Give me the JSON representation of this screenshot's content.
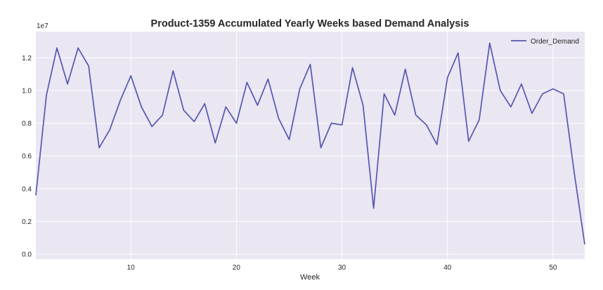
{
  "chart_data": {
    "type": "line",
    "title": "Product-1359 Accumulated Yearly Weeks based Demand Analysis",
    "xlabel": "Week",
    "ylabel": "",
    "y_offset_label": "1e7",
    "xlim": [
      1,
      53
    ],
    "ylim": [
      -0.03,
      1.36
    ],
    "x_ticks": [
      10,
      20,
      30,
      40,
      50
    ],
    "y_ticks": [
      0.0,
      0.2,
      0.4,
      0.6,
      0.8,
      1.0,
      1.2
    ],
    "y_tick_labels": [
      "0.0",
      "0.2",
      "0.4",
      "0.6",
      "0.8",
      "1.0",
      "1.2"
    ],
    "grid": true,
    "legend_position": "top-right",
    "colors": {
      "background": "#eae6f2",
      "grid": "#ffffff",
      "line": "#5557b0"
    },
    "x": [
      1,
      2,
      3,
      4,
      5,
      6,
      7,
      8,
      9,
      10,
      11,
      12,
      13,
      14,
      15,
      16,
      17,
      18,
      19,
      20,
      21,
      22,
      23,
      24,
      25,
      26,
      27,
      28,
      29,
      30,
      31,
      32,
      33,
      34,
      35,
      36,
      37,
      38,
      39,
      40,
      41,
      42,
      43,
      44,
      45,
      46,
      47,
      48,
      49,
      50,
      51,
      52,
      53
    ],
    "series": [
      {
        "name": "Order_Demand",
        "values": [
          0.36,
          0.97,
          1.26,
          1.04,
          1.26,
          1.15,
          0.65,
          0.76,
          0.94,
          1.09,
          0.9,
          0.78,
          0.85,
          1.12,
          0.88,
          0.81,
          0.92,
          0.68,
          0.9,
          0.8,
          1.05,
          0.91,
          1.07,
          0.83,
          0.7,
          1.01,
          1.16,
          0.65,
          0.8,
          0.79,
          1.14,
          0.91,
          0.28,
          0.98,
          0.85,
          1.13,
          0.85,
          0.79,
          0.67,
          1.08,
          1.23,
          0.69,
          0.82,
          1.29,
          1.0,
          0.9,
          1.04,
          0.86,
          0.98,
          1.01,
          0.98,
          0.5,
          0.06
        ]
      }
    ]
  }
}
